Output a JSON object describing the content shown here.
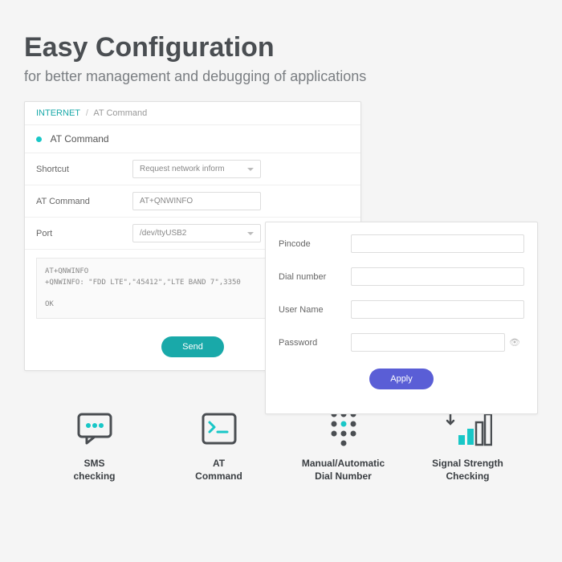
{
  "header": {
    "title": "Easy Configuration",
    "subtitle": "for better management and debugging of applications"
  },
  "panel1": {
    "breadcrumb_root": "INTERNET",
    "breadcrumb_current": "AT Command",
    "section_title": "AT Command",
    "rows": {
      "shortcut_label": "Shortcut",
      "shortcut_value": "Request network inform",
      "atcmd_label": "AT Command",
      "atcmd_value": "AT+QNWINFO",
      "port_label": "Port",
      "port_value": "/dev/ttyUSB2"
    },
    "output": "AT+QNWINFO\n+QNWINFO: \"FDD LTE\",\"45412\",\"LTE BAND 7\",3350\n\nOK",
    "send_label": "Send"
  },
  "panel2": {
    "pincode_label": "Pincode",
    "dial_label": "Dial number",
    "user_label": "User Name",
    "pass_label": "Password",
    "apply_label": "Apply"
  },
  "features": {
    "f1": "SMS\nchecking",
    "f2": "AT\nCommand",
    "f3": "Manual/Automatic\nDial Number",
    "f4": "Signal Strength\nChecking"
  },
  "colors": {
    "teal": "#19a9a9",
    "purple": "#5a5ed6",
    "icon_stroke": "#4a4e52",
    "icon_accent": "#19c7c7"
  }
}
